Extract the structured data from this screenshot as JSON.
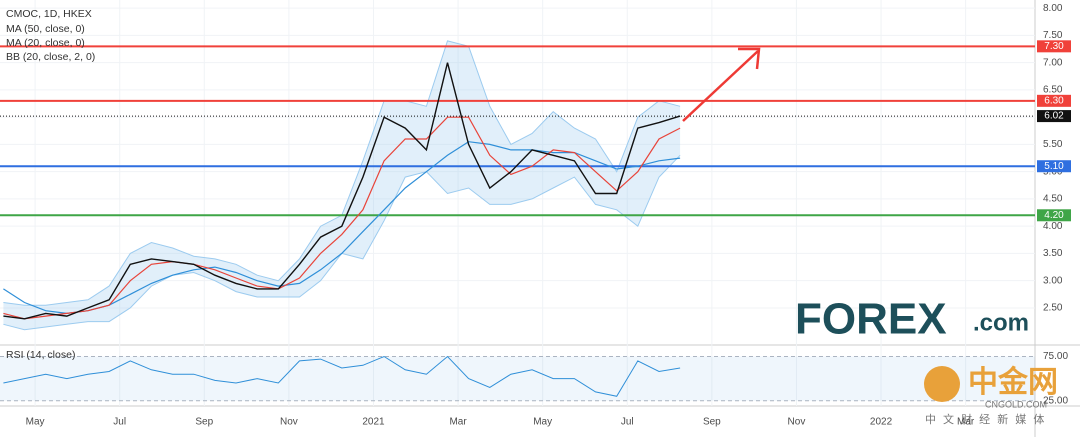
{
  "chart_data": [
    {
      "type": "line",
      "title": "CMOC, 1D, HKEX",
      "color": "#111111",
      "x": [
        -0.75,
        -0.25,
        0.25,
        0.75,
        1.25,
        1.75,
        2.25,
        2.75,
        3.25,
        3.75,
        4.25,
        4.75,
        5.25,
        5.75,
        6.25,
        6.75,
        7.25,
        7.75,
        8.25,
        8.75,
        9.25,
        9.75,
        10.25,
        10.75,
        11.25,
        11.75,
        12.25,
        12.75,
        13.25,
        13.75,
        14.25,
        14.75,
        15.25
      ],
      "values": [
        2.35,
        2.3,
        2.4,
        2.35,
        2.5,
        2.65,
        3.3,
        3.4,
        3.35,
        3.3,
        3.1,
        2.95,
        2.85,
        2.85,
        3.3,
        3.8,
        4.0,
        4.9,
        6.0,
        5.8,
        5.4,
        7.0,
        5.5,
        4.7,
        5.0,
        5.4,
        5.3,
        5.2,
        4.6,
        4.6,
        5.8,
        5.9,
        6.02
      ],
      "series": [
        {
          "name": "MA (50, close, 0)",
          "color": "#2f8fd8",
          "values": [
            2.85,
            2.6,
            2.45,
            2.4,
            2.45,
            2.55,
            2.75,
            2.95,
            3.1,
            3.2,
            3.25,
            3.15,
            3.0,
            2.9,
            2.95,
            3.2,
            3.5,
            3.9,
            4.3,
            4.7,
            5.0,
            5.3,
            5.55,
            5.5,
            5.4,
            5.4,
            5.35,
            5.35,
            5.2,
            5.05,
            5.1,
            5.2,
            5.25
          ]
        },
        {
          "name": "MA (20, close, 0)",
          "color": "#e8443a",
          "values": [
            2.4,
            2.3,
            2.35,
            2.4,
            2.45,
            2.55,
            3.0,
            3.3,
            3.35,
            3.3,
            3.2,
            3.05,
            2.9,
            2.85,
            3.05,
            3.5,
            3.85,
            4.3,
            5.2,
            5.6,
            5.6,
            6.0,
            6.0,
            5.3,
            4.95,
            5.1,
            5.4,
            5.35,
            5.0,
            4.65,
            5.0,
            5.6,
            5.8
          ]
        }
      ],
      "band": {
        "name": "BB (20, close, 2, 0)",
        "color": "#9ccbef",
        "upper": [
          2.6,
          2.55,
          2.55,
          2.6,
          2.65,
          2.9,
          3.5,
          3.7,
          3.6,
          3.45,
          3.4,
          3.3,
          3.1,
          3.0,
          3.4,
          4.0,
          4.2,
          5.2,
          6.3,
          6.3,
          6.2,
          7.4,
          7.3,
          6.2,
          5.5,
          5.7,
          6.1,
          5.8,
          5.6,
          5.0,
          6.0,
          6.3,
          6.2
        ],
        "lower": [
          2.2,
          2.1,
          2.15,
          2.2,
          2.25,
          2.25,
          2.5,
          2.9,
          3.1,
          3.15,
          3.0,
          2.8,
          2.7,
          2.7,
          2.7,
          3.0,
          3.5,
          3.4,
          4.1,
          4.9,
          5.0,
          4.6,
          4.7,
          4.4,
          4.4,
          4.5,
          4.7,
          4.9,
          4.4,
          4.3,
          4.0,
          4.9,
          5.3
        ]
      },
      "levels": [
        {
          "value": 7.3,
          "label": "7.30",
          "color": "#f0413a"
        },
        {
          "value": 6.3,
          "label": "6.30",
          "color": "#f0413a"
        },
        {
          "value": 5.1,
          "label": "5.10",
          "color": "#2f6fe0"
        },
        {
          "value": 4.2,
          "label": "4.20",
          "color": "#3fa547"
        }
      ],
      "last": {
        "value": 6.02,
        "label": "6.02",
        "color": "#111111"
      },
      "xlim": [
        -0.83,
        23.64
      ],
      "xticks": [
        {
          "value": 0,
          "label": "May"
        },
        {
          "value": 2,
          "label": "Jul"
        },
        {
          "value": 4,
          "label": "Sep"
        },
        {
          "value": 6,
          "label": "Nov"
        },
        {
          "value": 8,
          "label": "2021"
        },
        {
          "value": 10,
          "label": "Mar"
        },
        {
          "value": 12,
          "label": "May"
        },
        {
          "value": 14,
          "label": "Jul"
        },
        {
          "value": 16,
          "label": "Sep"
        },
        {
          "value": 18,
          "label": "Nov"
        },
        {
          "value": 20,
          "label": "2022"
        },
        {
          "value": 22,
          "label": "Mar"
        }
      ],
      "ylim": [
        1.82,
        8.15
      ],
      "yticks": [
        {
          "value": 2.5,
          "label": "2.50"
        },
        {
          "value": 3,
          "label": "3.00"
        },
        {
          "value": 3.5,
          "label": "3.50"
        },
        {
          "value": 4,
          "label": "4.00"
        },
        {
          "value": 4.5,
          "label": "4.50"
        },
        {
          "value": 5,
          "label": "5.00"
        },
        {
          "value": 5.5,
          "label": "5.50"
        },
        {
          "value": 6,
          "label": "6.00"
        },
        {
          "value": 6.5,
          "label": "6.50"
        },
        {
          "value": 7,
          "label": "7.00"
        },
        {
          "value": 7.5,
          "label": "7.50"
        },
        {
          "value": 8,
          "label": "8.00"
        }
      ],
      "grid": true
    },
    {
      "type": "line",
      "title": "RSI (14, close)",
      "color": "#2f8fd8",
      "x": [
        -0.75,
        -0.25,
        0.25,
        0.75,
        1.25,
        1.75,
        2.25,
        2.75,
        3.25,
        3.75,
        4.25,
        4.75,
        5.25,
        5.75,
        6.25,
        6.75,
        7.25,
        7.75,
        8.25,
        8.75,
        9.25,
        9.75,
        10.25,
        10.75,
        11.25,
        11.75,
        12.25,
        12.75,
        13.25,
        13.75,
        14.25,
        14.75,
        15.25
      ],
      "values": [
        45,
        50,
        55,
        50,
        55,
        58,
        70,
        60,
        55,
        55,
        48,
        45,
        50,
        45,
        70,
        72,
        62,
        65,
        75,
        60,
        55,
        75,
        50,
        40,
        55,
        60,
        50,
        50,
        35,
        30,
        70,
        58,
        62
      ],
      "ylim": [
        19,
        88
      ],
      "yticks": [
        {
          "value": 75,
          "label": "75.00"
        },
        {
          "value": 25,
          "label": "25.00"
        }
      ]
    }
  ],
  "watermarks": {
    "forex": {
      "brand": "FOREX",
      "suffix": ".com"
    },
    "cngold": {
      "name": "中金网",
      "site": "CNGOLD.COM",
      "tagline": "中 文 财 经 新 媒 体"
    }
  }
}
